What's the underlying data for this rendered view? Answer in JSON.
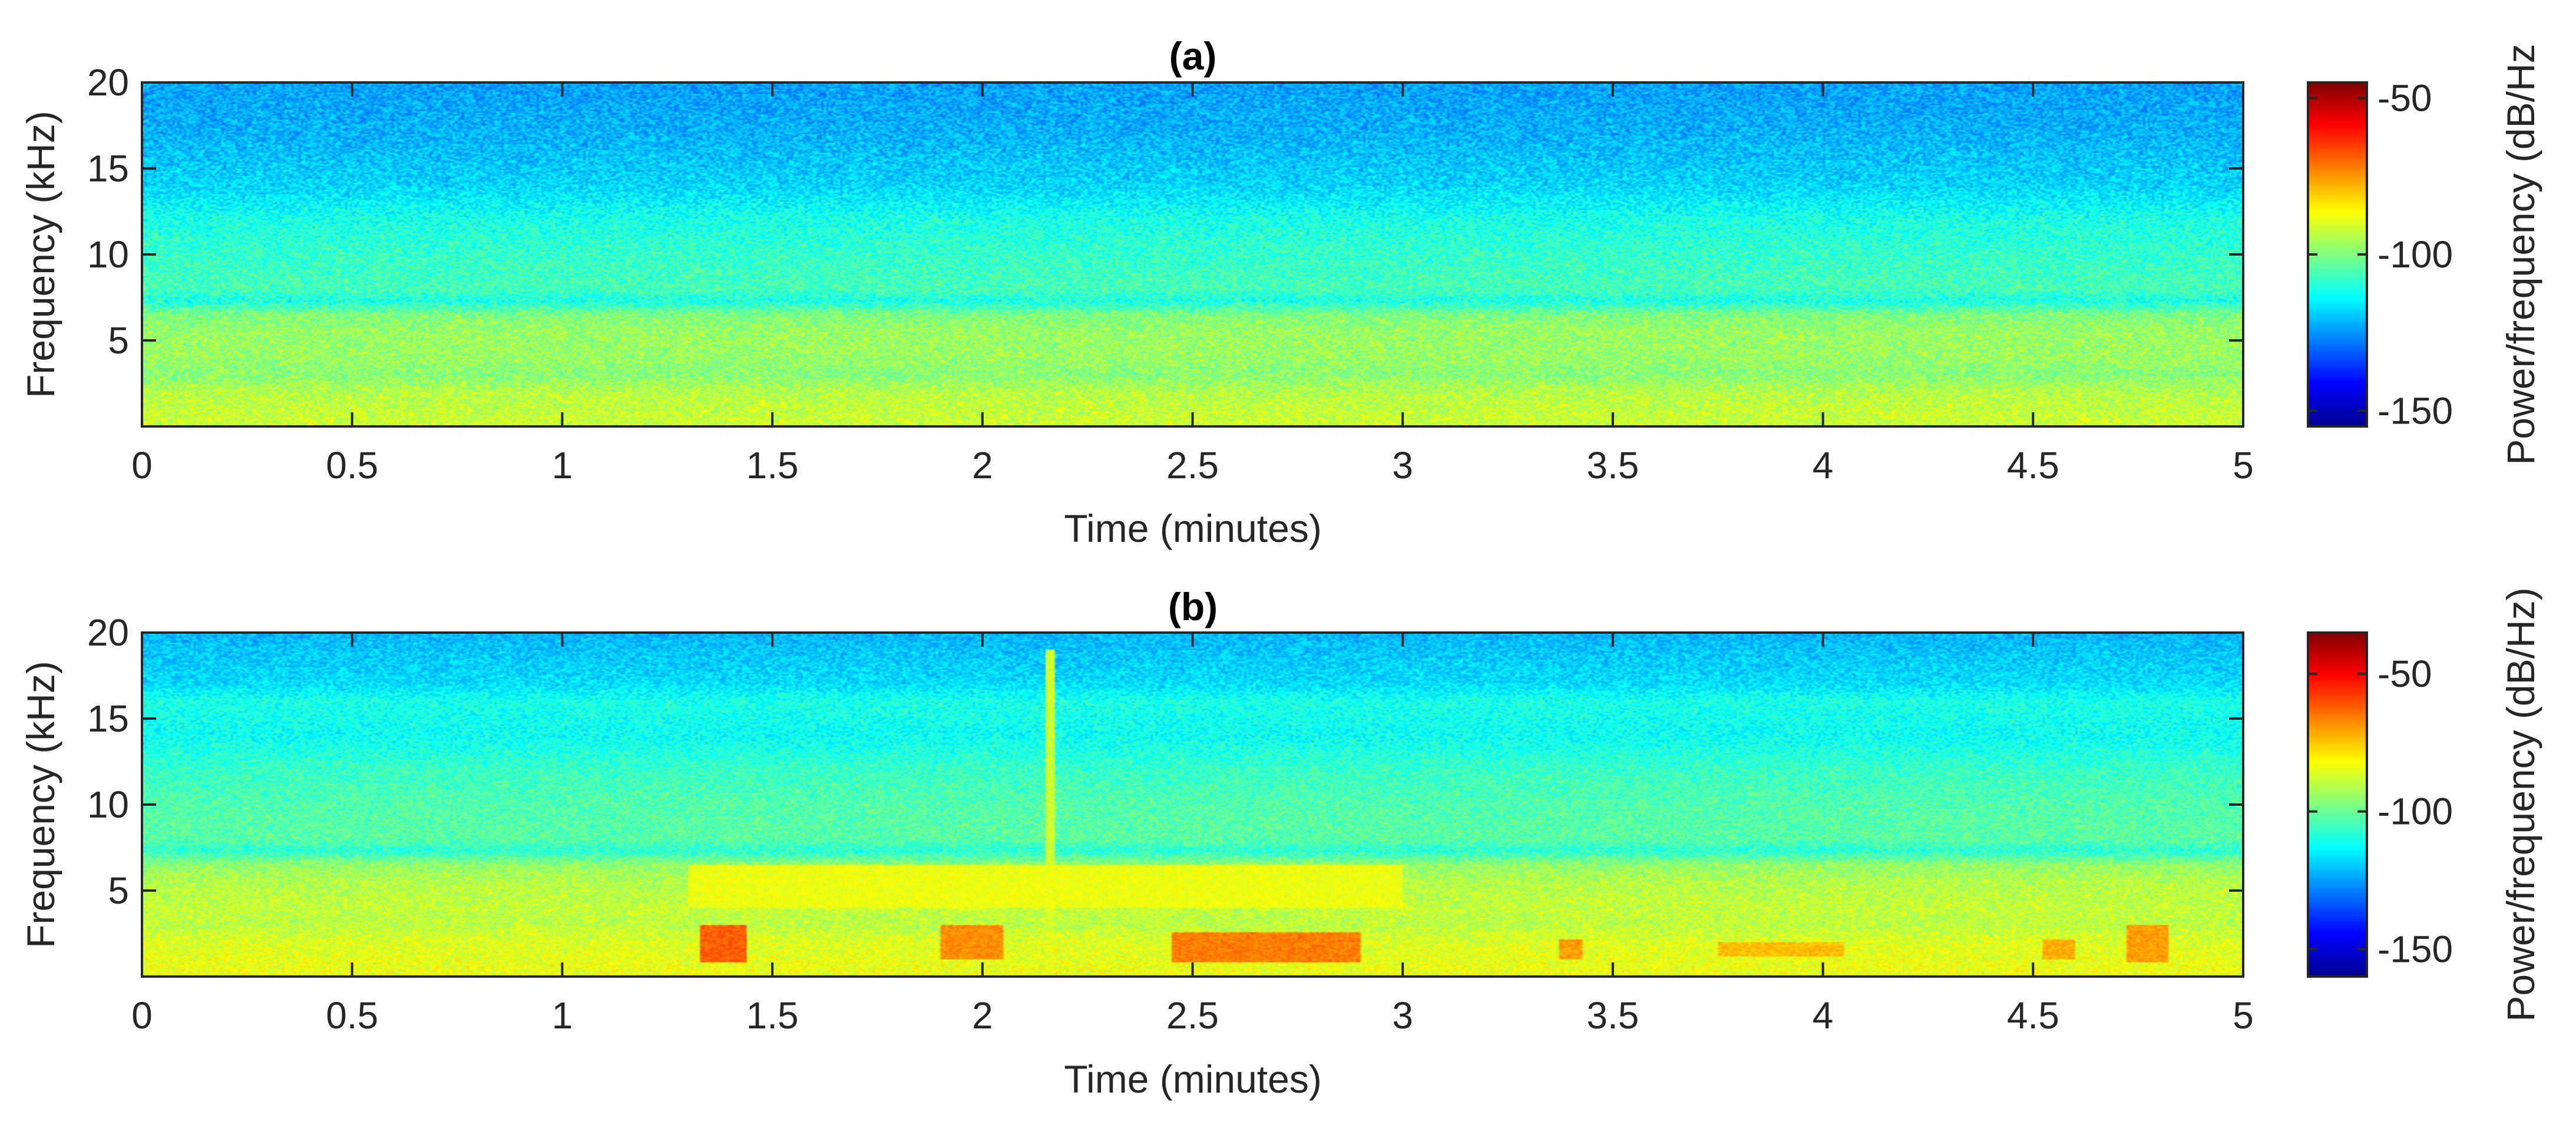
{
  "chart_data": [
    {
      "type": "heatmap",
      "title": "(a)",
      "xlabel": "Time (minutes)",
      "ylabel": "Frequency (kHz)",
      "xlim": [
        0,
        5
      ],
      "ylim": [
        0,
        20
      ],
      "xticks": [
        "0",
        "0.5",
        "1",
        "1.5",
        "2",
        "2.5",
        "3",
        "3.5",
        "4",
        "4.5",
        "5"
      ],
      "yticks": [
        "5",
        "10",
        "15",
        "20"
      ],
      "colorbar": {
        "label": "Power/frequency (dB/Hz",
        "ticks": [
          "-50",
          "-100",
          "-150"
        ],
        "range": [
          -155,
          -45
        ],
        "colormap": "jet"
      },
      "frequency_profile_db": [
        {
          "f": 0.5,
          "db": -92
        },
        {
          "f": 2,
          "db": -94
        },
        {
          "f": 3,
          "db": -99
        },
        {
          "f": 4,
          "db": -97
        },
        {
          "f": 5.5,
          "db": -97
        },
        {
          "f": 6.5,
          "db": -100
        },
        {
          "f": 7.3,
          "db": -111
        },
        {
          "f": 8,
          "db": -106
        },
        {
          "f": 10,
          "db": -108
        },
        {
          "f": 12,
          "db": -111
        },
        {
          "f": 14,
          "db": -118
        },
        {
          "f": 17,
          "db": -122
        },
        {
          "f": 20,
          "db": -124
        }
      ],
      "events": []
    },
    {
      "type": "heatmap",
      "title": "(b)",
      "xlabel": "Time (minutes)",
      "ylabel": "Frequency (kHz)",
      "xlim": [
        0,
        5
      ],
      "ylim": [
        0,
        20
      ],
      "xticks": [
        "0",
        "0.5",
        "1",
        "1.5",
        "2",
        "2.5",
        "3",
        "3.5",
        "4",
        "4.5",
        "5"
      ],
      "yticks": [
        "5",
        "10",
        "15",
        "20"
      ],
      "colorbar": {
        "label": "Power/frequency (dB/Hz)",
        "ticks": [
          "-50",
          "-100",
          "-150"
        ],
        "range": [
          -160,
          -35
        ],
        "colormap": "jet"
      },
      "frequency_profile_db": [
        {
          "f": 0.5,
          "db": -84
        },
        {
          "f": 2,
          "db": -86
        },
        {
          "f": 3,
          "db": -90
        },
        {
          "f": 4,
          "db": -89
        },
        {
          "f": 5.5,
          "db": -91
        },
        {
          "f": 6.5,
          "db": -95
        },
        {
          "f": 7.3,
          "db": -108
        },
        {
          "f": 8,
          "db": -102
        },
        {
          "f": 10,
          "db": -103
        },
        {
          "f": 12,
          "db": -106
        },
        {
          "f": 14,
          "db": -112
        },
        {
          "f": 16,
          "db": -110
        },
        {
          "f": 17,
          "db": -117
        },
        {
          "f": 20,
          "db": -122
        }
      ],
      "events": [
        {
          "t0": 1.33,
          "t1": 1.44,
          "f0": 0.8,
          "f1": 3.0,
          "db": -62
        },
        {
          "t0": 1.9,
          "t1": 2.05,
          "f0": 1.0,
          "f1": 3.0,
          "db": -68
        },
        {
          "t0": 2.45,
          "t1": 2.9,
          "f0": 0.8,
          "f1": 2.6,
          "db": -66
        },
        {
          "t0": 3.37,
          "t1": 3.43,
          "f0": 1.0,
          "f1": 2.2,
          "db": -70
        },
        {
          "t0": 3.75,
          "t1": 4.05,
          "f0": 1.2,
          "f1": 2.0,
          "db": -74
        },
        {
          "t0": 4.52,
          "t1": 4.6,
          "f0": 1.0,
          "f1": 2.2,
          "db": -72
        },
        {
          "t0": 4.72,
          "t1": 4.82,
          "f0": 0.8,
          "f1": 3.0,
          "db": -70
        },
        {
          "t0": 1.3,
          "t1": 3.0,
          "f0": 4.0,
          "f1": 6.5,
          "db": -84
        },
        {
          "t0": 2.15,
          "t1": 2.17,
          "f0": 0.5,
          "f1": 19.0,
          "db": -88
        }
      ]
    }
  ]
}
